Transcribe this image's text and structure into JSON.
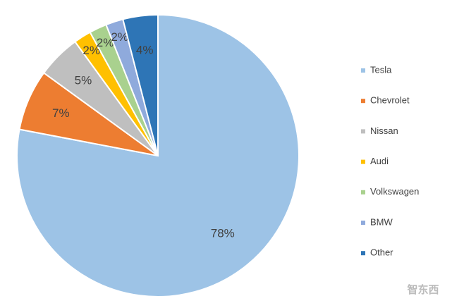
{
  "chart_data": {
    "type": "pie",
    "categories": [
      "Tesla",
      "Chevrolet",
      "Nissan",
      "Audi",
      "Volkswagen",
      "BMW",
      "Other"
    ],
    "values": [
      78,
      7,
      5,
      2,
      2,
      2,
      4
    ],
    "value_labels": [
      "78%",
      "7%",
      "5%",
      "2%",
      "2%",
      "2%",
      "4%"
    ],
    "colors": [
      "#9dc3e6",
      "#ed7d31",
      "#bfbfbf",
      "#ffc000",
      "#a9d18e",
      "#8faadc",
      "#2e75b6"
    ],
    "legend": "right"
  },
  "watermark": "智东西"
}
